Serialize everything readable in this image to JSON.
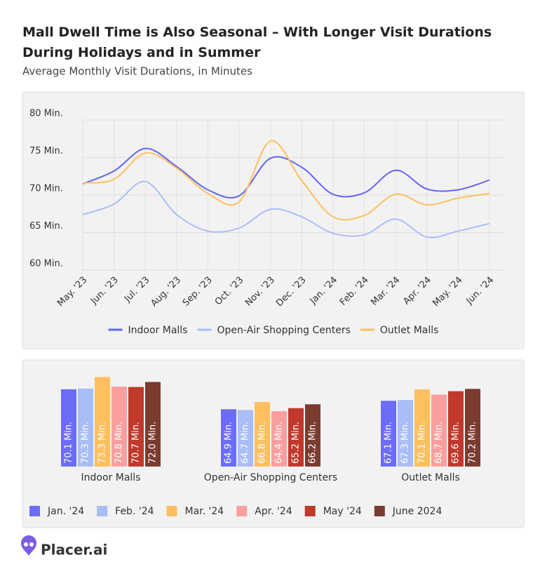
{
  "chart_data": [
    {
      "type": "line",
      "title": "Mall Dwell Time is Also Seasonal – With Longer Visit Durations During Holidays and in Summer",
      "subtitle": "Average Monthly Visit Durations, in Minutes",
      "categories": [
        "May. '23",
        "Jun. '23",
        "Jul. '23",
        "Aug. '23",
        "Sep. '23",
        "Oct. '23",
        "Nov. '23",
        "Dec. '23",
        "Jan. '24",
        "Feb. '24",
        "Mar. '24",
        "Apr. '24",
        "May. '24",
        "Jun. '24"
      ],
      "series": [
        {
          "name": "Indoor Malls",
          "color": "#6366f1",
          "values": [
            71.5,
            73.2,
            76.2,
            73.8,
            70.7,
            69.9,
            74.9,
            73.7,
            70.1,
            70.3,
            73.3,
            70.8,
            70.7,
            72.0
          ]
        },
        {
          "name": "Open-Air Shopping Centers",
          "color": "#a9bff7",
          "values": [
            67.4,
            68.8,
            71.8,
            67.4,
            65.2,
            65.6,
            68.1,
            67.1,
            64.9,
            64.7,
            66.8,
            64.4,
            65.2,
            66.2
          ]
        },
        {
          "name": "Outlet Malls",
          "color": "#ffbf5f",
          "values": [
            71.6,
            72.1,
            75.6,
            73.6,
            70.2,
            69.1,
            77.2,
            71.9,
            67.1,
            67.3,
            70.1,
            68.7,
            69.6,
            70.2
          ]
        }
      ],
      "ylim": [
        60,
        80
      ],
      "yticks": [
        {
          "value": 60,
          "label": "60 Min."
        },
        {
          "value": 65,
          "label": "65 Min."
        },
        {
          "value": 70,
          "label": "70 Min."
        },
        {
          "value": 75,
          "label": "75 Min."
        },
        {
          "value": 80,
          "label": "80 Min."
        }
      ],
      "grid": true,
      "legend": "bottom"
    },
    {
      "type": "bar",
      "categories": [
        "Indoor Malls",
        "Open-Air Shopping Centers",
        "Outlet Malls"
      ],
      "series": [
        {
          "name": "Jan. '24",
          "color": "#6c6cf6",
          "values": [
            70.1,
            64.9,
            67.1
          ],
          "value_labels": [
            "70.1 Min.",
            "64.9 Min.",
            "67.1 Min."
          ]
        },
        {
          "name": "Feb. '24",
          "color": "#a9bdf6",
          "values": [
            70.3,
            64.7,
            67.3
          ],
          "value_labels": [
            "70.3 Min.",
            "64.7 Min.",
            "67.3 Min."
          ]
        },
        {
          "name": "Mar. '24",
          "color": "#ffbf5f",
          "values": [
            73.3,
            66.8,
            70.1
          ],
          "value_labels": [
            "73.3 Min.",
            "66.8 Min.",
            "70.1 Min."
          ]
        },
        {
          "name": "Apr. '24",
          "color": "#f9a09f",
          "values": [
            70.8,
            64.4,
            68.7
          ],
          "value_labels": [
            "70.8 Min.",
            "64.4 Min.",
            "68.7 Min."
          ]
        },
        {
          "name": "May '24",
          "color": "#c0392b",
          "values": [
            70.7,
            65.2,
            69.6
          ],
          "value_labels": [
            "70.7 Min.",
            "65.2 Min.",
            "69.6 Min."
          ]
        },
        {
          "name": "June 2024",
          "color": "#7b3b2f",
          "values": [
            72.0,
            66.2,
            70.2
          ],
          "value_labels": [
            "72.0 Min.",
            "66.2 Min.",
            "70.2 Min."
          ]
        }
      ],
      "ylim": [
        50,
        75
      ],
      "legend": "bottom-left"
    }
  ],
  "footer": {
    "brand": "Placer.ai"
  }
}
